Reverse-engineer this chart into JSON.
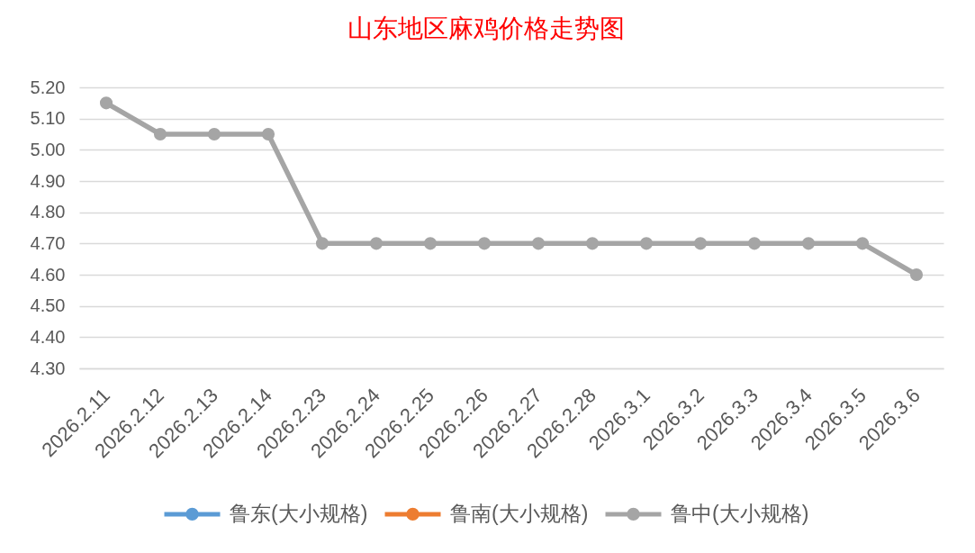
{
  "chart_data": {
    "type": "line",
    "title": "山东地区麻鸡价格走势图",
    "categories": [
      "2026.2.11",
      "2026.2.12",
      "2026.2.13",
      "2026.2.14",
      "2026.2.23",
      "2026.2.24",
      "2026.2.25",
      "2026.2.26",
      "2026.2.27",
      "2026.2.28",
      "2026.3.1",
      "2026.3.2",
      "2026.3.3",
      "2026.3.4",
      "2026.3.5",
      "2026.3.6"
    ],
    "series": [
      {
        "name": "鲁东(大小规格)",
        "color": "#5b9bd5",
        "values": [
          null,
          null,
          null,
          null,
          null,
          null,
          null,
          null,
          null,
          null,
          null,
          null,
          null,
          null,
          null,
          null
        ]
      },
      {
        "name": "鲁南(大小规格)",
        "color": "#ed7d31",
        "values": [
          null,
          null,
          null,
          null,
          null,
          null,
          null,
          null,
          null,
          null,
          null,
          null,
          null,
          null,
          null,
          null
        ]
      },
      {
        "name": "鲁中(大小规格)",
        "color": "#a5a5a5",
        "values": [
          5.15,
          5.05,
          5.05,
          5.05,
          4.7,
          4.7,
          4.7,
          4.7,
          4.7,
          4.7,
          4.7,
          4.7,
          4.7,
          4.7,
          4.7,
          4.6
        ]
      }
    ],
    "ylim": [
      4.3,
      5.2
    ],
    "yticks": [
      {
        "value": 4.3,
        "label": "4.30"
      },
      {
        "value": 4.4,
        "label": "4.40"
      },
      {
        "value": 4.5,
        "label": "4.50"
      },
      {
        "value": 4.6,
        "label": "4.60"
      },
      {
        "value": 4.7,
        "label": "4.70"
      },
      {
        "value": 4.8,
        "label": "4.80"
      },
      {
        "value": 4.9,
        "label": "4.90"
      },
      {
        "value": 5.0,
        "label": "5.00"
      },
      {
        "value": 5.1,
        "label": "5.10"
      },
      {
        "value": 5.2,
        "label": "5.20"
      }
    ],
    "grid": "y",
    "legend": "bottom",
    "marker": "circle",
    "line_style": "solid"
  }
}
